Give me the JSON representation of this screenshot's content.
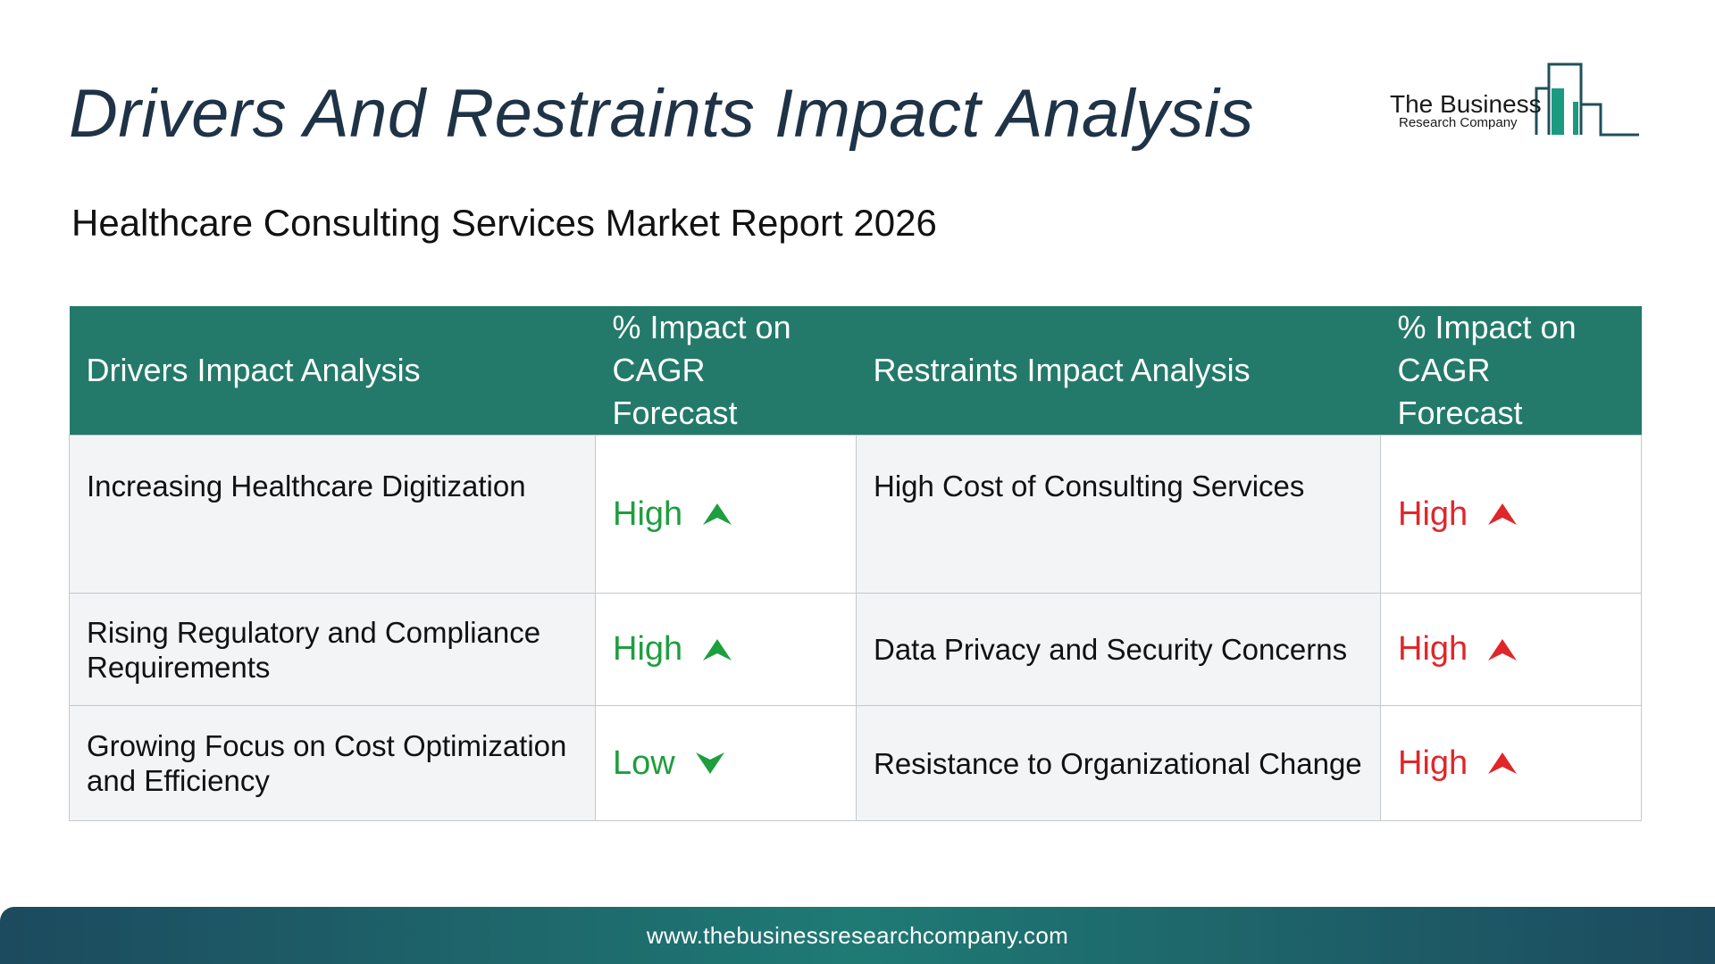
{
  "title": "Drivers And Restraints Impact Analysis",
  "subtitle": "Healthcare Consulting Services Market Report 2026",
  "logo": {
    "line1": "The Business",
    "line2": "Research Company",
    "color": "#1a9a7f"
  },
  "table": {
    "headers": {
      "drivers": "Drivers Impact Analysis",
      "drivers_impact": "% Impact on CAGR Forecast",
      "restraints": "Restraints Impact Analysis",
      "restraints_impact": "% Impact on CAGR Forecast"
    },
    "header_color": "#237a6a",
    "rows": [
      {
        "driver": "Increasing Healthcare Digitization",
        "driver_impact": "High",
        "driver_icon": "arrow-up-icon",
        "restraint": "High Cost of Consulting Services",
        "restraint_impact": "High",
        "restraint_icon": "arrow-up-icon"
      },
      {
        "driver": "Rising Regulatory and Compliance Requirements",
        "driver_impact": "High",
        "driver_icon": "arrow-up-icon",
        "restraint": "Data Privacy and Security Concerns",
        "restraint_impact": "High",
        "restraint_icon": "arrow-up-icon"
      },
      {
        "driver": "Growing Focus on Cost Optimization and Efficiency",
        "driver_impact": "Low",
        "driver_icon": "arrow-down-icon",
        "restraint": "Resistance to Organizational Change",
        "restraint_impact": "High",
        "restraint_icon": "arrow-up-icon"
      }
    ],
    "colors": {
      "driver_impact": "#1e9e3e",
      "restraint_impact": "#e0262a"
    }
  },
  "footer": {
    "url": "www.thebusinessresearchcompany.com"
  }
}
